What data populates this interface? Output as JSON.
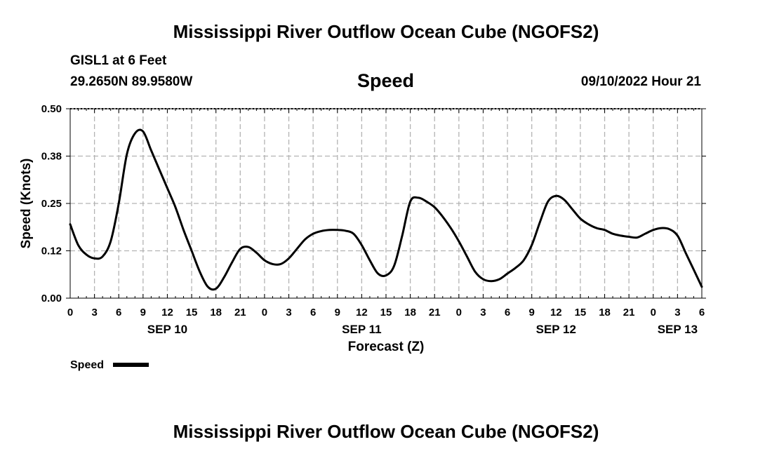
{
  "header": {
    "title_top": "Mississippi River Outflow Ocean Cube (NGOFS2)",
    "station": "GISL1 at 6 Feet",
    "coords": "29.2650N  89.9580W",
    "chart_title": "Speed",
    "datetime": "09/10/2022 Hour 21",
    "title_bottom": "Mississippi River Outflow Ocean Cube (NGOFS2)"
  },
  "colors": {
    "line": "#000000",
    "grid": "#b3b3b3",
    "background": "#ffffff"
  },
  "chart_data": {
    "type": "line",
    "title": "Speed",
    "xlabel": "Forecast (Z)",
    "ylabel": "Speed (Knots)",
    "ylim": [
      0,
      0.5
    ],
    "xlim": [
      0,
      78
    ],
    "x_unit": "hours since SEP 10 00Z",
    "y_ticks": [
      "0.00",
      "0.12",
      "0.25",
      "0.38",
      "0.50"
    ],
    "y_tick_values": [
      0,
      0.125,
      0.25,
      0.375,
      0.5
    ],
    "x_ticks": [
      {
        "x": 0,
        "label": "0"
      },
      {
        "x": 3,
        "label": "3"
      },
      {
        "x": 6,
        "label": "6"
      },
      {
        "x": 9,
        "label": "9"
      },
      {
        "x": 12,
        "label": "12"
      },
      {
        "x": 15,
        "label": "15"
      },
      {
        "x": 18,
        "label": "18"
      },
      {
        "x": 21,
        "label": "21"
      },
      {
        "x": 24,
        "label": "0"
      },
      {
        "x": 27,
        "label": "3"
      },
      {
        "x": 30,
        "label": "6"
      },
      {
        "x": 33,
        "label": "9"
      },
      {
        "x": 36,
        "label": "12"
      },
      {
        "x": 39,
        "label": "15"
      },
      {
        "x": 42,
        "label": "18"
      },
      {
        "x": 45,
        "label": "21"
      },
      {
        "x": 48,
        "label": "0"
      },
      {
        "x": 51,
        "label": "3"
      },
      {
        "x": 54,
        "label": "6"
      },
      {
        "x": 57,
        "label": "9"
      },
      {
        "x": 60,
        "label": "12"
      },
      {
        "x": 63,
        "label": "15"
      },
      {
        "x": 66,
        "label": "18"
      },
      {
        "x": 69,
        "label": "21"
      },
      {
        "x": 72,
        "label": "0"
      },
      {
        "x": 75,
        "label": "3"
      },
      {
        "x": 78,
        "label": "6"
      }
    ],
    "date_labels": [
      {
        "x": 12,
        "label": "SEP 10"
      },
      {
        "x": 36,
        "label": "SEP 11"
      },
      {
        "x": 60,
        "label": "SEP 12"
      },
      {
        "x": 75,
        "label": "SEP 13"
      }
    ],
    "grid": true,
    "legend": {
      "label": "Speed",
      "position": "bottom-left"
    },
    "series": [
      {
        "name": "Speed",
        "x": [
          0,
          1,
          2,
          3,
          4,
          5,
          6,
          7,
          8,
          9,
          10,
          11,
          12,
          13,
          14,
          15,
          16,
          17,
          18,
          19,
          20,
          21,
          22,
          23,
          24,
          25,
          26,
          27,
          28,
          29,
          30,
          31,
          32,
          33,
          34,
          35,
          36,
          37,
          38,
          39,
          40,
          41,
          42,
          43,
          44,
          45,
          46,
          47,
          48,
          49,
          50,
          51,
          52,
          53,
          54,
          55,
          56,
          57,
          58,
          59,
          60,
          61,
          62,
          63,
          64,
          65,
          66,
          67,
          68,
          69,
          70,
          71,
          72,
          73,
          74,
          75,
          76,
          77,
          78
        ],
        "values": [
          0.195,
          0.14,
          0.115,
          0.105,
          0.11,
          0.15,
          0.25,
          0.38,
          0.435,
          0.44,
          0.39,
          0.34,
          0.29,
          0.24,
          0.18,
          0.125,
          0.07,
          0.03,
          0.025,
          0.055,
          0.095,
          0.13,
          0.135,
          0.12,
          0.1,
          0.09,
          0.09,
          0.105,
          0.13,
          0.155,
          0.17,
          0.177,
          0.18,
          0.18,
          0.178,
          0.17,
          0.14,
          0.1,
          0.065,
          0.06,
          0.085,
          0.165,
          0.255,
          0.265,
          0.255,
          0.24,
          0.215,
          0.185,
          0.15,
          0.11,
          0.07,
          0.05,
          0.045,
          0.05,
          0.065,
          0.08,
          0.1,
          0.14,
          0.2,
          0.255,
          0.27,
          0.26,
          0.235,
          0.21,
          0.195,
          0.185,
          0.18,
          0.17,
          0.165,
          0.162,
          0.16,
          0.17,
          0.18,
          0.185,
          0.182,
          0.165,
          0.12,
          0.075,
          0.03
        ]
      }
    ]
  }
}
